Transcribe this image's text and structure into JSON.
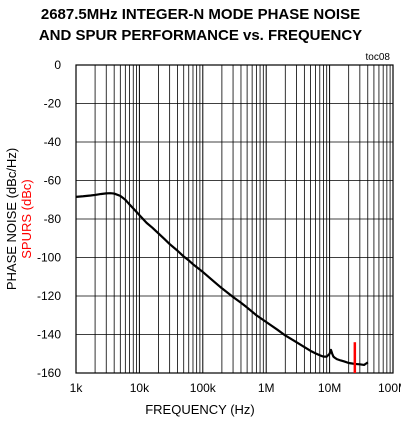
{
  "chart_data": {
    "type": "line",
    "title_line1": "2687.5MHz INTEGER-N MODE PHASE NOISE",
    "title_line2": "AND SPUR PERFORMANCE vs. FREQUENCY",
    "tag": "toc08",
    "xlabel": "FREQUENCY (Hz)",
    "ylabel": "PHASE NOISE (dBc/Hz)",
    "ylabel2": "SPURS (dBc)",
    "x_scale": "log",
    "xlim": [
      1000,
      100000000
    ],
    "ylim": [
      -160,
      0
    ],
    "grid": true,
    "x_ticks": [
      {
        "v": 1000,
        "label": "1k"
      },
      {
        "v": 10000,
        "label": "10k"
      },
      {
        "v": 100000,
        "label": "100k"
      },
      {
        "v": 1000000,
        "label": "1M"
      },
      {
        "v": 10000000,
        "label": "10M"
      },
      {
        "v": 100000000,
        "label": "100M"
      }
    ],
    "y_ticks": [
      {
        "v": 0,
        "label": "0"
      },
      {
        "v": -20,
        "label": "-20"
      },
      {
        "v": -40,
        "label": "-40"
      },
      {
        "v": -60,
        "label": "-60"
      },
      {
        "v": -80,
        "label": "-80"
      },
      {
        "v": -100,
        "label": "-100"
      },
      {
        "v": -120,
        "label": "-120"
      },
      {
        "v": -140,
        "label": "-140"
      },
      {
        "v": -160,
        "label": "-160"
      }
    ],
    "series": [
      {
        "color": "#000000",
        "x": [
          1000,
          1300,
          1700,
          2000,
          2500,
          3000,
          3500,
          4000,
          5000,
          6000,
          7000,
          8000,
          10000,
          13000,
          16000,
          20000,
          25000,
          30000,
          40000,
          50000,
          60000,
          70000,
          80000,
          100000,
          150000,
          200000,
          300000,
          400000,
          500000,
          700000,
          1000000,
          1500000,
          2000000,
          3000000,
          4000000,
          5000000,
          6000000,
          7000000,
          8000000,
          9000000,
          10000000,
          10500000,
          11000000,
          11500000,
          12000000,
          13000000,
          15000000,
          17000000,
          20000000,
          22000000,
          25000000,
          30000000,
          35000000,
          38000000,
          40000000
        ],
        "values": [
          -68.5,
          -68.2,
          -67.8,
          -67.5,
          -67.0,
          -66.7,
          -66.6,
          -66.8,
          -68.0,
          -70.0,
          -72.5,
          -74.5,
          -78.0,
          -82.0,
          -84.5,
          -87.5,
          -90.5,
          -93.0,
          -96.5,
          -99.5,
          -101.5,
          -103.5,
          -105.0,
          -107.5,
          -112.5,
          -116.0,
          -120.5,
          -123.5,
          -126.0,
          -130.0,
          -133.5,
          -137.5,
          -140.5,
          -144.0,
          -146.5,
          -148.5,
          -149.8,
          -150.8,
          -151.5,
          -151.5,
          -150.0,
          -148.0,
          -150.0,
          -151.5,
          -152.0,
          -152.8,
          -153.5,
          -154.0,
          -154.8,
          -155.0,
          -155.3,
          -155.5,
          -155.8,
          -155.0,
          -154.5
        ]
      }
    ],
    "spurs": [
      {
        "color": "#ff0000",
        "x": 25000000,
        "value": -144
      }
    ]
  }
}
